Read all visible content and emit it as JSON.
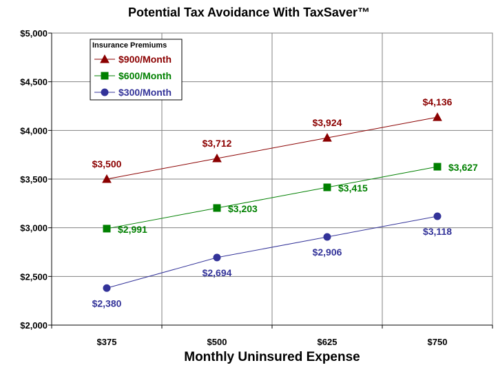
{
  "chart_data": {
    "type": "line",
    "title": "Potential Tax Avoidance With TaxSaver™",
    "xlabel": "Monthly Uninsured Expense",
    "ylabel": "",
    "categories": [
      "$375",
      "$500",
      "$625",
      "$750"
    ],
    "ylim": [
      2000,
      5000
    ],
    "yticks": [
      "$2,000",
      "$2,500",
      "$3,000",
      "$3,500",
      "$4,000",
      "$4,500",
      "$5,000"
    ],
    "grid": true,
    "legend": {
      "title": "Insurance Premiums",
      "placement": "top-left"
    },
    "series": [
      {
        "name": "$900/Month",
        "color": "#8B0000",
        "marker": "triangle",
        "values": [
          3500,
          3712,
          3924,
          4136
        ],
        "labels": [
          "$3,500",
          "$3,712",
          "$3,924",
          "$4,136"
        ]
      },
      {
        "name": "$600/Month",
        "color": "#008000",
        "marker": "square",
        "values": [
          2991,
          3203,
          3415,
          3627
        ],
        "labels": [
          "$2,991",
          "$3,203",
          "$3,415",
          "$3,627"
        ]
      },
      {
        "name": "$300/Month",
        "color": "#333399",
        "marker": "circle",
        "values": [
          2380,
          2694,
          2906,
          3118
        ],
        "labels": [
          "$2,380",
          "$2,694",
          "$2,906",
          "$3,118"
        ]
      }
    ]
  }
}
